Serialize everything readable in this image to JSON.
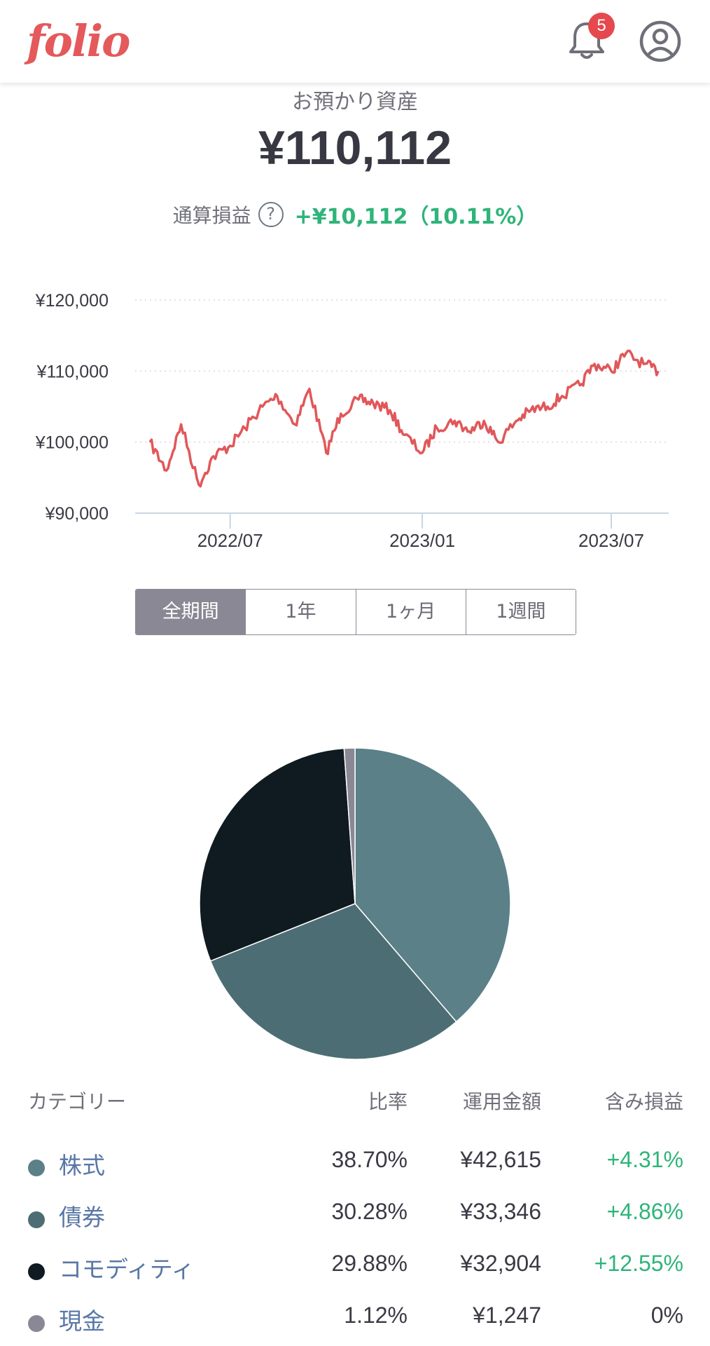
{
  "header": {
    "logo_text": "folio",
    "notification_count": "5",
    "icons": {
      "bell": "bell-icon",
      "account": "account-circle-icon"
    }
  },
  "summary": {
    "label": "お預かり資産",
    "value": "¥110,112",
    "pl_label": "通算損益",
    "help_icon": "?",
    "pl_value": "+¥10,112（10.11%）"
  },
  "chart_data": [
    {
      "type": "line",
      "y_ticks": [
        "¥120,000",
        "¥110,000",
        "¥100,000",
        "¥90,000"
      ],
      "ylim": [
        90000,
        120000
      ],
      "x_ticks": [
        "2022/07",
        "2023/01",
        "2023/07"
      ],
      "x_range": [
        "2022-04",
        "2023-08"
      ],
      "grid": true,
      "color": "#e15759",
      "series": [
        {
          "x": [
            "2022-04-15",
            "2022-05-01",
            "2022-05-15",
            "2022-06-01",
            "2022-06-15",
            "2022-07-01",
            "2022-07-15",
            "2022-08-01",
            "2022-08-15",
            "2022-09-01",
            "2022-09-15",
            "2022-10-01",
            "2022-10-15",
            "2022-11-01",
            "2022-11-15",
            "2022-12-01",
            "2022-12-15",
            "2023-01-01",
            "2023-01-15",
            "2023-02-01",
            "2023-02-15",
            "2023-03-01",
            "2023-03-15",
            "2023-04-01",
            "2023-04-15",
            "2023-05-01",
            "2023-05-15",
            "2023-06-01",
            "2023-06-15",
            "2023-07-01",
            "2023-07-15",
            "2023-08-01",
            "2023-08-15"
          ],
          "values": [
            100000,
            96000,
            102500,
            94000,
            98000,
            99500,
            102000,
            105000,
            106500,
            102500,
            107500,
            98500,
            104000,
            106000,
            105500,
            104500,
            101000,
            98500,
            102000,
            103000,
            101500,
            103000,
            100000,
            103000,
            104500,
            105000,
            106500,
            108000,
            111000,
            110000,
            112500,
            111000,
            110000
          ]
        }
      ]
    },
    {
      "type": "pie",
      "labels": [
        "株式",
        "債券",
        "コモディティ",
        "現金"
      ],
      "values": [
        38.7,
        30.28,
        29.88,
        1.12
      ],
      "colors": [
        "#5b8087",
        "#4d6d74",
        "#0f1b20",
        "#8a8894"
      ]
    }
  ],
  "period_tabs": [
    {
      "label": "全期間",
      "active": true
    },
    {
      "label": "1年",
      "active": false
    },
    {
      "label": "1ヶ月",
      "active": false
    },
    {
      "label": "1週間",
      "active": false
    }
  ],
  "table": {
    "headers": {
      "category": "カテゴリー",
      "ratio": "比率",
      "amount": "運用金額",
      "pl": "含み損益"
    },
    "rows": [
      {
        "name": "株式",
        "ratio": "38.70%",
        "amount": "¥42,615",
        "pl": "+4.31%",
        "color": "#5b8087",
        "positive": true
      },
      {
        "name": "債券",
        "ratio": "30.28%",
        "amount": "¥33,346",
        "pl": "+4.86%",
        "color": "#4d6d74",
        "positive": true
      },
      {
        "name": "コモディティ",
        "ratio": "29.88%",
        "amount": "¥32,904",
        "pl": "+12.55%",
        "color": "#0f1b20",
        "positive": true
      },
      {
        "name": "現金",
        "ratio": "1.12%",
        "amount": "¥1,247",
        "pl": "0%",
        "color": "#8a8894",
        "positive": false
      }
    ]
  }
}
